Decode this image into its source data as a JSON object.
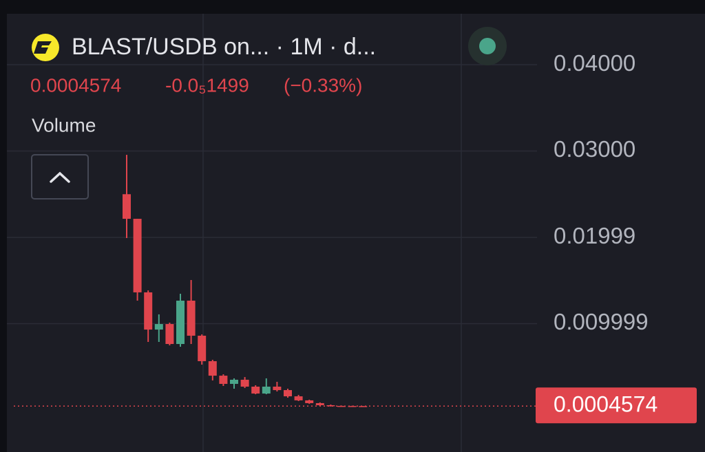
{
  "chart_data": {
    "type": "candlestick",
    "title": "BLAST/USDB on... · 1M · d...",
    "last_price": 0.0004574,
    "change": "-0.0₅1499",
    "change_percent": "(−0.33%)",
    "volume_label": "Volume",
    "up_color": "#4aa58a",
    "down_color": "#e0454d",
    "open": [
      0.025,
      0.02215,
      0.01363,
      0.00932,
      0.00996,
      0.00765,
      0.01267,
      0.00861,
      0.00566,
      0.00398,
      0.00303,
      0.00351,
      0.00271,
      0.00191,
      0.00271,
      0.00231,
      0.00159,
      0.00112,
      0.0008,
      0.00056,
      0.00048,
      0.00047,
      0.00046
    ],
    "high": [
      0.02956,
      0.02215,
      0.01386,
      0.01108,
      0.01012,
      0.01347,
      0.01506,
      0.00876,
      0.00582,
      0.00414,
      0.00367,
      0.00382,
      0.00287,
      0.00367,
      0.00327,
      0.00247,
      0.00175,
      0.0012,
      0.00088,
      0.00064,
      0.00052,
      0.0005,
      0.00048
    ],
    "low": [
      0.01992,
      0.01267,
      0.00789,
      0.00789,
      0.00749,
      0.00733,
      0.00765,
      0.00526,
      0.00343,
      0.00279,
      0.00247,
      0.00255,
      0.00183,
      0.00183,
      0.00215,
      0.00143,
      0.00104,
      0.00072,
      0.00048,
      0.0004,
      0.0004,
      0.00044,
      0.00045
    ],
    "close": [
      0.02215,
      0.01363,
      0.00932,
      0.00996,
      0.00765,
      0.01267,
      0.00861,
      0.00566,
      0.00398,
      0.00303,
      0.00351,
      0.00271,
      0.00191,
      0.00271,
      0.00231,
      0.00159,
      0.00112,
      0.0008,
      0.00056,
      0.00048,
      0.00044,
      0.00046,
      0.0004574
    ],
    "ylim": [
      -0.00486,
      0.04574
    ],
    "yticks": [
      {
        "value": 0.04,
        "label": "0.04000"
      },
      {
        "value": 0.03,
        "label": "0.03000"
      },
      0.01999,
      0.009999
    ],
    "grid": true
  }
}
